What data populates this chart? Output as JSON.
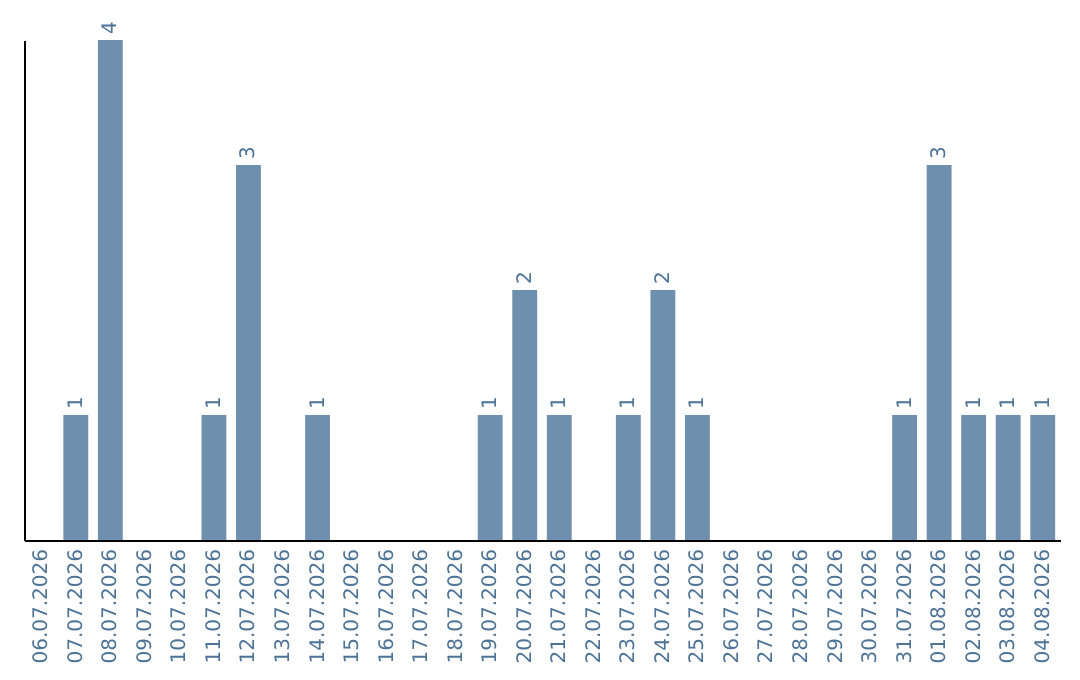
{
  "chart_data": {
    "type": "bar",
    "categories": [
      "06.07.2026",
      "07.07.2026",
      "08.07.2026",
      "09.07.2026",
      "10.07.2026",
      "11.07.2026",
      "12.07.2026",
      "13.07.2026",
      "14.07.2026",
      "15.07.2026",
      "16.07.2026",
      "17.07.2026",
      "18.07.2026",
      "19.07.2026",
      "20.07.2026",
      "21.07.2026",
      "22.07.2026",
      "23.07.2026",
      "24.07.2026",
      "25.07.2026",
      "26.07.2026",
      "27.07.2026",
      "28.07.2026",
      "29.07.2026",
      "30.07.2026",
      "31.07.2026",
      "01.08.2026",
      "02.08.2026",
      "03.08.2026",
      "04.08.2026"
    ],
    "values": [
      0,
      1,
      4,
      0,
      0,
      1,
      3,
      0,
      1,
      0,
      0,
      0,
      0,
      1,
      2,
      1,
      0,
      1,
      2,
      1,
      0,
      0,
      0,
      0,
      0,
      1,
      3,
      1,
      1,
      1
    ],
    "value_labels": [
      null,
      "1",
      "4",
      null,
      null,
      "1",
      "3",
      null,
      "1",
      null,
      null,
      null,
      null,
      "1",
      "2",
      "1",
      null,
      "1",
      "2",
      "1",
      null,
      null,
      null,
      null,
      null,
      "1",
      "3",
      "1",
      "1",
      "1"
    ],
    "color": "#6e8fad",
    "grid": false,
    "tick_labels": "x"
  }
}
